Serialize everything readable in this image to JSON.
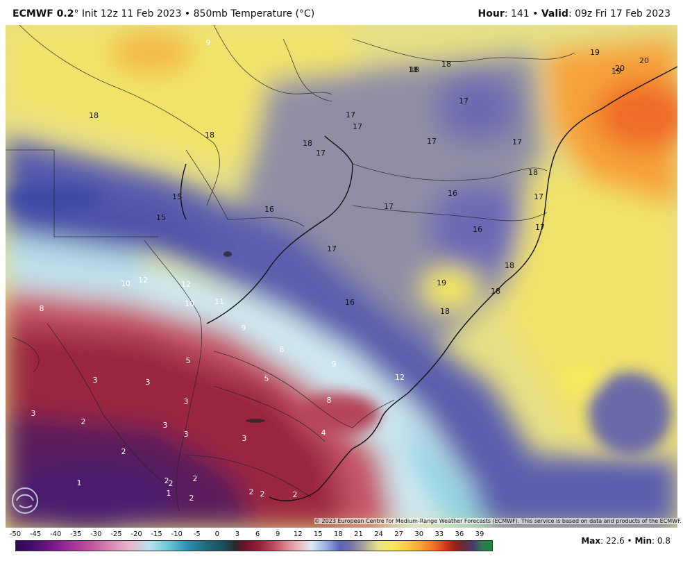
{
  "header": {
    "model": "ECMWF 0.2",
    "degree": "°",
    "init_text": " Init 12z 11 Feb 2023 • 850mb Temperature (°C)",
    "hour_label": "Hour",
    "hour_value": ": 141 • ",
    "valid_label": "Valid",
    "valid_value": ": 09z Fri 17 Feb 2023"
  },
  "map": {
    "field": "850mb Temperature",
    "contour_labels": [
      {
        "text": "9"
      },
      {
        "text": "18"
      },
      {
        "text": "18"
      },
      {
        "text": "19"
      },
      {
        "text": "20"
      },
      {
        "text": "19"
      },
      {
        "text": "20"
      },
      {
        "text": "18"
      },
      {
        "text": "17"
      },
      {
        "text": "17"
      },
      {
        "text": "17"
      },
      {
        "text": "17"
      },
      {
        "text": "17"
      },
      {
        "text": "18"
      },
      {
        "text": "17"
      },
      {
        "text": "18"
      },
      {
        "text": "16"
      },
      {
        "text": "17"
      },
      {
        "text": "18"
      },
      {
        "text": "16"
      },
      {
        "text": "16"
      },
      {
        "text": "17"
      },
      {
        "text": "17"
      },
      {
        "text": "15"
      },
      {
        "text": "15"
      },
      {
        "text": "17"
      },
      {
        "text": "18"
      },
      {
        "text": "19"
      },
      {
        "text": "18"
      },
      {
        "text": "18"
      },
      {
        "text": "18"
      },
      {
        "text": "10"
      },
      {
        "text": "12"
      },
      {
        "text": "12"
      },
      {
        "text": "10"
      },
      {
        "text": "11"
      },
      {
        "text": "16"
      },
      {
        "text": "8"
      },
      {
        "text": "9"
      },
      {
        "text": "8"
      },
      {
        "text": "9"
      },
      {
        "text": "12"
      },
      {
        "text": "5"
      },
      {
        "text": "5"
      },
      {
        "text": "8"
      },
      {
        "text": "3"
      },
      {
        "text": "3"
      },
      {
        "text": "3"
      },
      {
        "text": "3"
      },
      {
        "text": "3"
      },
      {
        "text": "2"
      },
      {
        "text": "3"
      },
      {
        "text": "4"
      },
      {
        "text": "3"
      },
      {
        "text": "2"
      },
      {
        "text": "1"
      },
      {
        "text": "2"
      },
      {
        "text": "2"
      },
      {
        "text": "2"
      },
      {
        "text": "1"
      },
      {
        "text": "2"
      },
      {
        "text": "2"
      },
      {
        "text": "2"
      },
      {
        "text": "2"
      }
    ]
  },
  "copyright": "© 2023 European Centre for Medium-Range Weather Forecasts (ECMWF). This service is based on data and products of the ECMWF.",
  "legend": {
    "ticks": [
      "-50",
      "-45",
      "-40",
      "-35",
      "-30",
      "-25",
      "-20",
      "-15",
      "-10",
      "-5",
      "0",
      "3",
      "6",
      "9",
      "12",
      "15",
      "18",
      "21",
      "24",
      "27",
      "30",
      "33",
      "36",
      "39"
    ]
  },
  "stats": {
    "max_label": "Max",
    "max_value": ": 22.6 • ",
    "min_label": "Min",
    "min_value": ": 0.8"
  },
  "logo_icon": "weatherbell-logo-icon"
}
